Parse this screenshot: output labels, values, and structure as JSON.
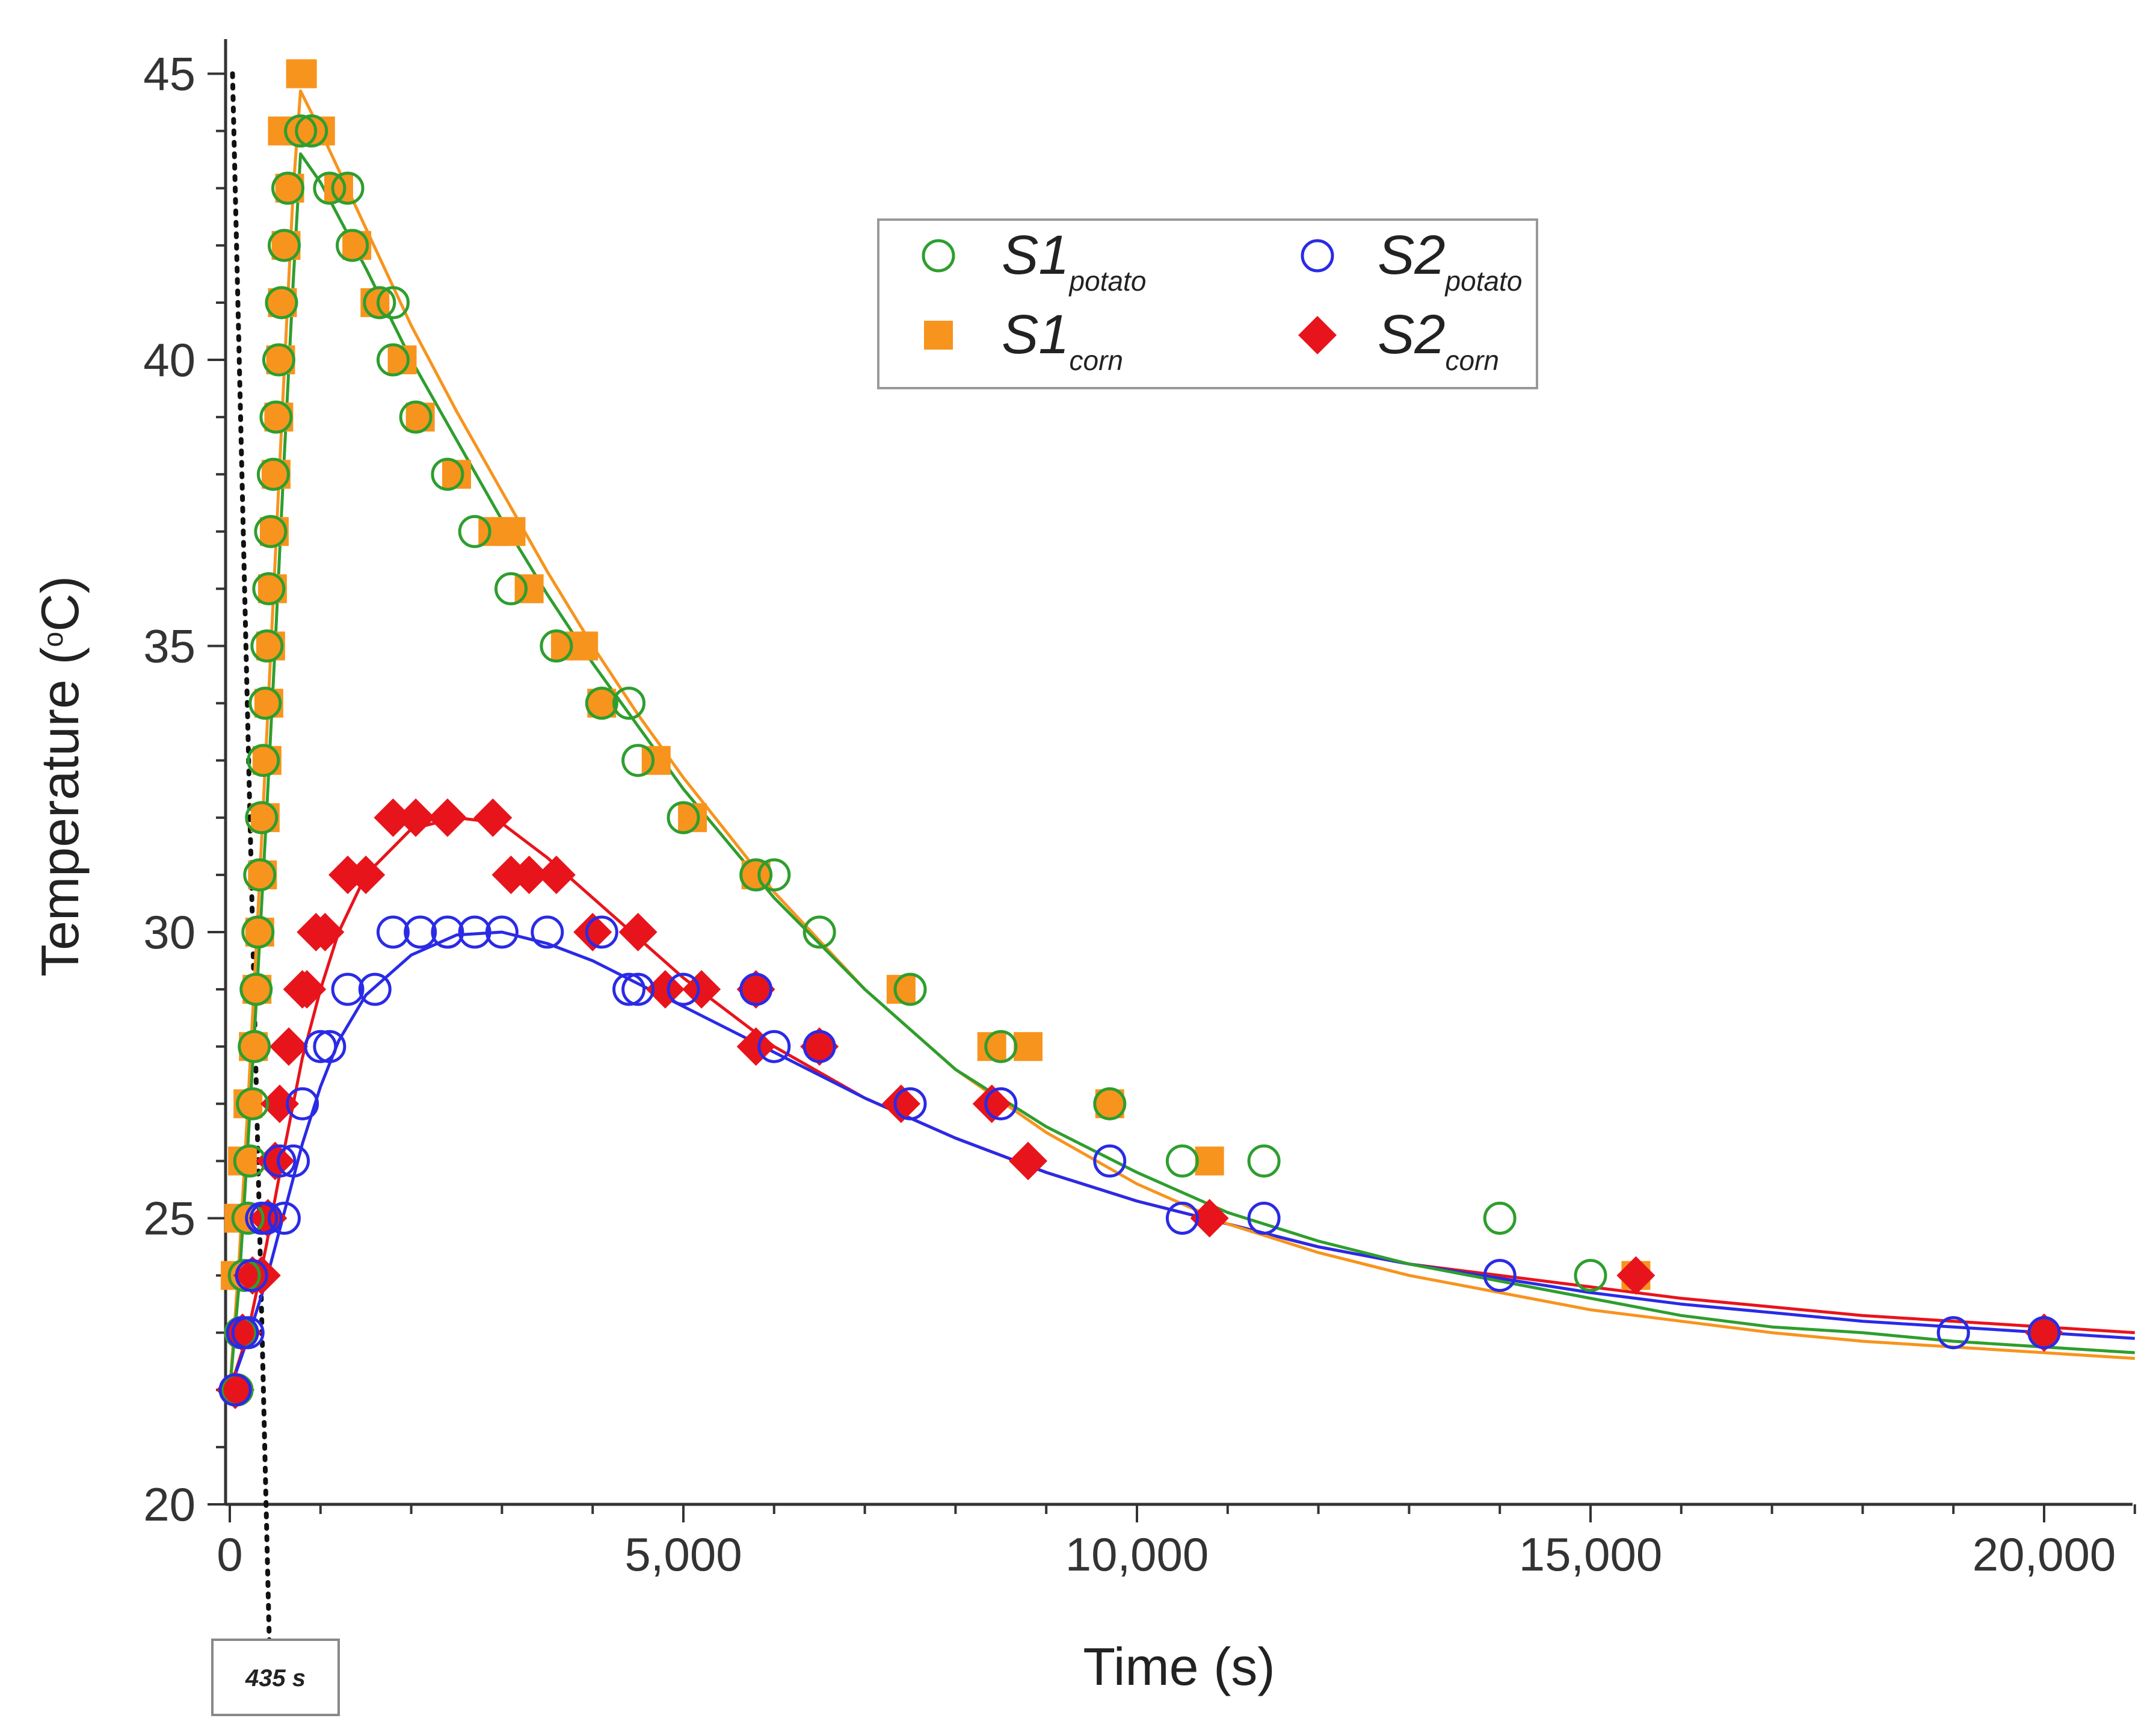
{
  "chart_data": {
    "type": "scatter",
    "title": "",
    "xlabel": "Time (s)",
    "ylabel_main": "Temperature (",
    "ylabel_sup": "o",
    "ylabel_end": "C)",
    "xlim": [
      -200,
      21000
    ],
    "ylim": [
      20,
      45.5
    ],
    "x_ticks": [
      0,
      5000,
      10000,
      15000,
      20000
    ],
    "x_tick_labels": [
      "0",
      "5,000",
      "10,000",
      "15,000",
      "20,000"
    ],
    "y_ticks": [
      20,
      25,
      30,
      35,
      40,
      45
    ],
    "y_tick_labels": [
      "20",
      "25",
      "30",
      "35",
      "40",
      "45"
    ],
    "x_minor_step": 1000,
    "y_minor_step": 1,
    "grid": false,
    "legend_position": "top-center",
    "annotation": {
      "x": 435,
      "label": "435 s"
    },
    "series": [
      {
        "name": "S1",
        "subscript": "potato",
        "marker": "circle-open",
        "color": "#2e9e2e",
        "points": [
          [
            80,
            22
          ],
          [
            120,
            23
          ],
          [
            160,
            24
          ],
          [
            200,
            25
          ],
          [
            220,
            26
          ],
          [
            250,
            27
          ],
          [
            270,
            28
          ],
          [
            290,
            29
          ],
          [
            310,
            30
          ],
          [
            330,
            31
          ],
          [
            350,
            32
          ],
          [
            370,
            33
          ],
          [
            390,
            34
          ],
          [
            410,
            35
          ],
          [
            430,
            36
          ],
          [
            450,
            37
          ],
          [
            480,
            38
          ],
          [
            510,
            39
          ],
          [
            540,
            40
          ],
          [
            570,
            41
          ],
          [
            600,
            42
          ],
          [
            640,
            43
          ],
          [
            780,
            44
          ],
          [
            900,
            44
          ],
          [
            1100,
            43
          ],
          [
            1300,
            43
          ],
          [
            1350,
            42
          ],
          [
            1650,
            41
          ],
          [
            1800,
            41
          ],
          [
            1800,
            40
          ],
          [
            2050,
            39
          ],
          [
            2400,
            38
          ],
          [
            2700,
            37
          ],
          [
            3100,
            36
          ],
          [
            3600,
            35
          ],
          [
            4100,
            34
          ],
          [
            4400,
            34
          ],
          [
            4500,
            33
          ],
          [
            5000,
            32
          ],
          [
            5800,
            31
          ],
          [
            6000,
            31
          ],
          [
            6500,
            30
          ],
          [
            7500,
            29
          ],
          [
            8500,
            28
          ],
          [
            9700,
            27
          ],
          [
            10500,
            26
          ],
          [
            11400,
            26
          ],
          [
            14000,
            25
          ],
          [
            15000,
            24
          ],
          [
            19000,
            23
          ],
          [
            20000,
            23
          ]
        ],
        "fit": [
          [
            0,
            22
          ],
          [
            100,
            23.8
          ],
          [
            200,
            26.3
          ],
          [
            300,
            29
          ],
          [
            400,
            31.9
          ],
          [
            500,
            35
          ],
          [
            600,
            38.3
          ],
          [
            700,
            41.4
          ],
          [
            780,
            43.6
          ],
          [
            1000,
            43.1
          ],
          [
            1500,
            41.6
          ],
          [
            2000,
            40.0
          ],
          [
            2500,
            38.6
          ],
          [
            3000,
            37.2
          ],
          [
            3500,
            35.9
          ],
          [
            4000,
            34.7
          ],
          [
            4500,
            33.6
          ],
          [
            5000,
            32.5
          ],
          [
            6000,
            30.6
          ],
          [
            7000,
            29.0
          ],
          [
            8000,
            27.6
          ],
          [
            9000,
            26.6
          ],
          [
            10000,
            25.8
          ],
          [
            11000,
            25.1
          ],
          [
            12000,
            24.6
          ],
          [
            13000,
            24.2
          ],
          [
            14000,
            23.9
          ],
          [
            15000,
            23.6
          ],
          [
            16000,
            23.3
          ],
          [
            17000,
            23.1
          ],
          [
            18000,
            23.0
          ],
          [
            19000,
            22.85
          ],
          [
            20000,
            22.75
          ],
          [
            21000,
            22.65
          ]
        ]
      },
      {
        "name": "S1",
        "subscript": "corn",
        "marker": "square",
        "color": "#f7941d",
        "points": [
          [
            60,
            24
          ],
          [
            100,
            25
          ],
          [
            140,
            26
          ],
          [
            200,
            27
          ],
          [
            260,
            28
          ],
          [
            300,
            29
          ],
          [
            330,
            30
          ],
          [
            360,
            31
          ],
          [
            390,
            32
          ],
          [
            410,
            33
          ],
          [
            430,
            34
          ],
          [
            450,
            35
          ],
          [
            470,
            36
          ],
          [
            490,
            37
          ],
          [
            510,
            38
          ],
          [
            540,
            39
          ],
          [
            560,
            40
          ],
          [
            580,
            41
          ],
          [
            620,
            42
          ],
          [
            660,
            43
          ],
          [
            580,
            44
          ],
          [
            750,
            44
          ],
          [
            780,
            45
          ],
          [
            800,
            45
          ],
          [
            1000,
            44
          ],
          [
            1200,
            43
          ],
          [
            1400,
            42
          ],
          [
            1600,
            41
          ],
          [
            1900,
            40
          ],
          [
            2100,
            39
          ],
          [
            2500,
            38
          ],
          [
            2900,
            37
          ],
          [
            3100,
            37
          ],
          [
            3300,
            36
          ],
          [
            3700,
            35
          ],
          [
            3900,
            35
          ],
          [
            4100,
            34
          ],
          [
            4700,
            33
          ],
          [
            5100,
            32
          ],
          [
            5800,
            31
          ],
          [
            7400,
            29
          ],
          [
            8400,
            28
          ],
          [
            8800,
            28
          ],
          [
            9700,
            27
          ],
          [
            10800,
            26
          ],
          [
            15500,
            24
          ]
        ],
        "fit": [
          [
            0,
            22
          ],
          [
            100,
            24.2
          ],
          [
            200,
            27
          ],
          [
            300,
            30
          ],
          [
            400,
            33.2
          ],
          [
            500,
            36.5
          ],
          [
            600,
            39.8
          ],
          [
            700,
            43
          ],
          [
            780,
            44.7
          ],
          [
            1000,
            44.0
          ],
          [
            1500,
            42.3
          ],
          [
            2000,
            40.6
          ],
          [
            2500,
            39.1
          ],
          [
            3000,
            37.7
          ],
          [
            3500,
            36.3
          ],
          [
            4000,
            35.0
          ],
          [
            4500,
            33.8
          ],
          [
            5000,
            32.7
          ],
          [
            6000,
            30.7
          ],
          [
            7000,
            29.0
          ],
          [
            8000,
            27.6
          ],
          [
            9000,
            26.5
          ],
          [
            10000,
            25.6
          ],
          [
            11000,
            24.9
          ],
          [
            12000,
            24.4
          ],
          [
            13000,
            24.0
          ],
          [
            14000,
            23.7
          ],
          [
            15000,
            23.4
          ],
          [
            16000,
            23.2
          ],
          [
            17000,
            23.0
          ],
          [
            18000,
            22.85
          ],
          [
            19000,
            22.75
          ],
          [
            20000,
            22.65
          ],
          [
            21000,
            22.55
          ]
        ]
      },
      {
        "name": "S2",
        "subscript": "potato",
        "marker": "circle-open",
        "color": "#2a2ae6",
        "points": [
          [
            60,
            22
          ],
          [
            140,
            23
          ],
          [
            200,
            23
          ],
          [
            240,
            24
          ],
          [
            350,
            25
          ],
          [
            400,
            25
          ],
          [
            600,
            25
          ],
          [
            550,
            26
          ],
          [
            700,
            26
          ],
          [
            800,
            27
          ],
          [
            1000,
            28
          ],
          [
            1100,
            28
          ],
          [
            1300,
            29
          ],
          [
            1600,
            29
          ],
          [
            1800,
            30
          ],
          [
            2100,
            30
          ],
          [
            2400,
            30
          ],
          [
            2700,
            30
          ],
          [
            3000,
            30
          ],
          [
            3500,
            30
          ],
          [
            4100,
            30
          ],
          [
            4400,
            29
          ],
          [
            4500,
            29
          ],
          [
            5000,
            29
          ],
          [
            5800,
            29
          ],
          [
            6000,
            28
          ],
          [
            6500,
            28
          ],
          [
            7500,
            27
          ],
          [
            8500,
            27
          ],
          [
            9700,
            26
          ],
          [
            10500,
            25
          ],
          [
            11400,
            25
          ],
          [
            14000,
            24
          ],
          [
            19000,
            23
          ],
          [
            20000,
            23
          ]
        ],
        "fit": [
          [
            0,
            22
          ],
          [
            200,
            22.9
          ],
          [
            400,
            23.9
          ],
          [
            600,
            25.1
          ],
          [
            800,
            26.3
          ],
          [
            1000,
            27.3
          ],
          [
            1200,
            28.1
          ],
          [
            1500,
            28.9
          ],
          [
            2000,
            29.6
          ],
          [
            2500,
            29.95
          ],
          [
            3000,
            30.0
          ],
          [
            3500,
            29.8
          ],
          [
            4000,
            29.5
          ],
          [
            4500,
            29.1
          ],
          [
            5000,
            28.7
          ],
          [
            6000,
            27.9
          ],
          [
            7000,
            27.1
          ],
          [
            8000,
            26.4
          ],
          [
            9000,
            25.8
          ],
          [
            10000,
            25.3
          ],
          [
            11000,
            24.9
          ],
          [
            12000,
            24.5
          ],
          [
            13000,
            24.2
          ],
          [
            14000,
            23.95
          ],
          [
            15000,
            23.7
          ],
          [
            16000,
            23.5
          ],
          [
            17000,
            23.35
          ],
          [
            18000,
            23.2
          ],
          [
            19000,
            23.1
          ],
          [
            20000,
            23.0
          ],
          [
            21000,
            22.9
          ]
        ]
      },
      {
        "name": "S2",
        "subscript": "corn",
        "marker": "diamond",
        "color": "#e8141c",
        "points": [
          [
            60,
            22
          ],
          [
            140,
            23
          ],
          [
            250,
            24
          ],
          [
            350,
            24
          ],
          [
            420,
            25
          ],
          [
            500,
            26
          ],
          [
            550,
            27
          ],
          [
            650,
            28
          ],
          [
            800,
            29
          ],
          [
            850,
            29
          ],
          [
            950,
            30
          ],
          [
            1050,
            30
          ],
          [
            1300,
            31
          ],
          [
            1500,
            31
          ],
          [
            1800,
            32
          ],
          [
            2050,
            32
          ],
          [
            2400,
            32
          ],
          [
            2900,
            32
          ],
          [
            3100,
            31
          ],
          [
            3300,
            31
          ],
          [
            3600,
            31
          ],
          [
            4000,
            30
          ],
          [
            4500,
            30
          ],
          [
            4800,
            29
          ],
          [
            5200,
            29
          ],
          [
            5800,
            29
          ],
          [
            5800,
            28
          ],
          [
            6500,
            28
          ],
          [
            7400,
            27
          ],
          [
            8400,
            27
          ],
          [
            8800,
            26
          ],
          [
            10800,
            25
          ],
          [
            15500,
            24
          ],
          [
            20000,
            23
          ]
        ],
        "fit": [
          [
            0,
            22
          ],
          [
            200,
            23
          ],
          [
            400,
            24.5
          ],
          [
            600,
            26.2
          ],
          [
            800,
            27.8
          ],
          [
            1000,
            29
          ],
          [
            1200,
            30
          ],
          [
            1500,
            31
          ],
          [
            2000,
            31.8
          ],
          [
            2500,
            32
          ],
          [
            3000,
            31.9
          ],
          [
            3500,
            31.3
          ],
          [
            4000,
            30.6
          ],
          [
            4500,
            29.9
          ],
          [
            5000,
            29.2
          ],
          [
            6000,
            28.0
          ],
          [
            7000,
            27.1
          ],
          [
            8000,
            26.4
          ],
          [
            9000,
            25.8
          ],
          [
            10000,
            25.3
          ],
          [
            11000,
            24.9
          ],
          [
            12000,
            24.5
          ],
          [
            13000,
            24.2
          ],
          [
            14000,
            24.0
          ],
          [
            15000,
            23.8
          ],
          [
            16000,
            23.6
          ],
          [
            17000,
            23.45
          ],
          [
            18000,
            23.3
          ],
          [
            19000,
            23.2
          ],
          [
            20000,
            23.1
          ],
          [
            21000,
            23.0
          ]
        ]
      }
    ]
  }
}
